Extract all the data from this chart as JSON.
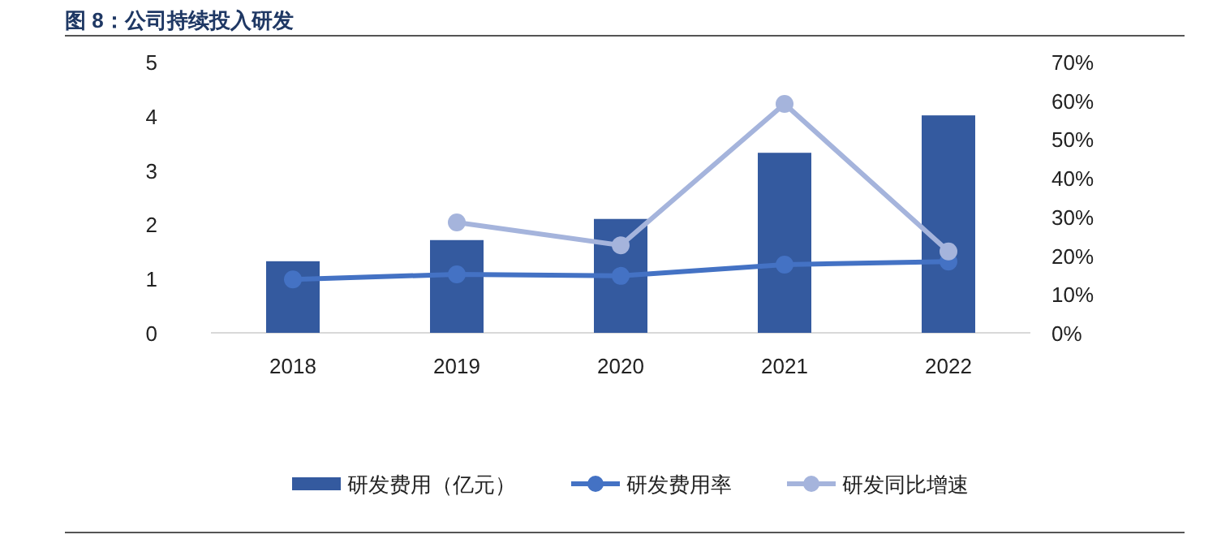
{
  "chart_data": {
    "type": "bar",
    "title": "图 8：公司持续投入研发",
    "categories": [
      "2018",
      "2019",
      "2020",
      "2021",
      "2022"
    ],
    "series": [
      {
        "name": "研发费用（亿元）",
        "color": "#345a9f",
        "values": [
          1.32,
          1.71,
          2.1,
          3.32,
          4.01
        ]
      },
      {
        "name": "研发费用率",
        "type": "line",
        "axis": "y2",
        "color": "#4472c4",
        "values": [
          13.8,
          15.1,
          14.7,
          17.6,
          18.4
        ]
      },
      {
        "name": "研发同比增速",
        "type": "line",
        "axis": "y2",
        "color": "#a5b4dc",
        "values": [
          null,
          28.5,
          22.6,
          59.1,
          21.0
        ]
      }
    ],
    "ylim": [
      0,
      5
    ],
    "yticks": [
      0,
      1,
      2,
      3,
      4,
      5
    ],
    "y2lim": [
      0,
      70
    ],
    "y2ticks": [
      {
        "value": 0,
        "label": "0%"
      },
      {
        "value": 10,
        "label": "10%"
      },
      {
        "value": 20,
        "label": "20%"
      },
      {
        "value": 30,
        "label": "30%"
      },
      {
        "value": 40,
        "label": "40%"
      },
      {
        "value": 50,
        "label": "50%"
      },
      {
        "value": 60,
        "label": "60%"
      },
      {
        "value": 70,
        "label": "70%"
      }
    ],
    "grid": false,
    "legend": "bottom",
    "marker": "circle",
    "line_style": "solid"
  }
}
